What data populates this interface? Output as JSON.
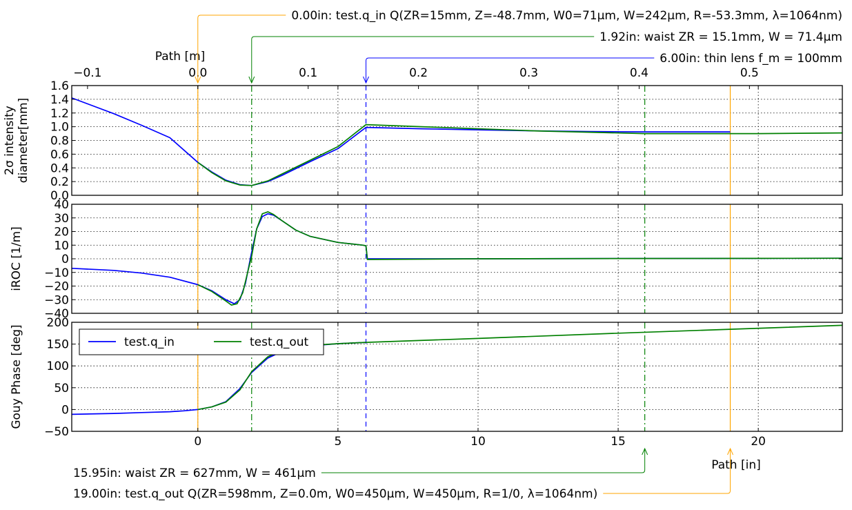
{
  "chart_data": {
    "type": "line",
    "x_unit": "in",
    "series": [
      {
        "name": "test.q_in",
        "color": "#0000ff"
      },
      {
        "name": "test.q_out",
        "color": "#008000"
      }
    ],
    "legend": {
      "placement": "top-left of bottom panel",
      "entries": [
        "test.q_in",
        "test.q_out"
      ]
    },
    "x_axis_bottom": {
      "label": "Path [in]",
      "range": [
        -4.5,
        23
      ],
      "ticks": [
        "0",
        "5",
        "10",
        "15",
        "20"
      ],
      "tick_values": [
        0,
        5,
        10,
        15,
        20
      ]
    },
    "x_axis_top": {
      "label": "Path [m]",
      "range": [
        -0.1143,
        0.5842
      ],
      "ticks": [
        "−0.1",
        "0.0",
        "0.1",
        "0.2",
        "0.3",
        "0.4",
        "0.5"
      ],
      "tick_values": [
        -0.1,
        0.0,
        0.1,
        0.2,
        0.3,
        0.4,
        0.5
      ]
    },
    "panels": [
      {
        "id": "diameter",
        "ylabel_lines": [
          "2σ intensity",
          "diameter[mm]"
        ],
        "ylim": [
          0,
          1.6
        ],
        "yticks": [
          "0.0",
          "0.2",
          "0.4",
          "0.6",
          "0.8",
          "1.0",
          "1.2",
          "1.4",
          "1.6"
        ],
        "ytick_values": [
          0,
          0.2,
          0.4,
          0.6,
          0.8,
          1.0,
          1.2,
          1.4,
          1.6
        ],
        "grid": true,
        "data": {
          "test.q_in": {
            "x": [
              -4.5,
              -3.0,
              -2.0,
              -1.0,
              0.0,
              0.5,
              1.0,
              1.5,
              1.92,
              2.5,
              3.0,
              4.0,
              5.0,
              6.0,
              8.0,
              10.0,
              12.0,
              14.0,
              16.0,
              18.0,
              19.0
            ],
            "y": [
              1.42,
              1.19,
              1.02,
              0.84,
              0.48,
              0.34,
              0.22,
              0.155,
              0.143,
              0.2,
              0.29,
              0.49,
              0.68,
              0.99,
              0.97,
              0.955,
              0.94,
              0.93,
              0.925,
              0.925,
              0.925
            ]
          },
          "test.q_out": {
            "x": [
              0.0,
              0.5,
              1.0,
              1.5,
              1.92,
              2.5,
              3.0,
              4.0,
              5.0,
              6.0,
              8.0,
              10.0,
              12.0,
              14.0,
              15.95,
              18.0,
              20.0,
              23.0
            ],
            "y": [
              0.48,
              0.33,
              0.21,
              0.15,
              0.143,
              0.21,
              0.31,
              0.51,
              0.71,
              1.03,
              1.0,
              0.97,
              0.94,
              0.92,
              0.9,
              0.9,
              0.9,
              0.91
            ]
          }
        }
      },
      {
        "id": "iroc",
        "ylabel_lines": [
          "iROC [1/m]"
        ],
        "ylim": [
          -40,
          40
        ],
        "yticks": [
          "−40",
          "−30",
          "−20",
          "−10",
          "0",
          "10",
          "20",
          "30",
          "40"
        ],
        "ytick_values": [
          -40,
          -30,
          -20,
          -10,
          0,
          10,
          20,
          30,
          40
        ],
        "grid": true,
        "data": {
          "test.q_in": {
            "x": [
              -4.5,
              -3.0,
              -2.0,
              -1.0,
              0.0,
              0.5,
              1.0,
              1.3,
              1.5,
              1.7,
              1.9,
              2.1,
              2.3,
              2.5,
              2.7,
              3.0,
              3.5,
              4.0,
              5.0,
              5.9,
              6.0,
              6.05,
              10.0,
              15.0,
              20.0,
              23.0
            ],
            "y": [
              -7,
              -8.5,
              -10.5,
              -13.5,
              -19,
              -23.5,
              -30,
              -33,
              -30,
              -18,
              3,
              22,
              31,
              33,
              32,
              28,
              21,
              16.5,
              12,
              10,
              9.5,
              0,
              0,
              0.2,
              0.3,
              0.4
            ]
          },
          "test.q_out": {
            "x": [
              0.0,
              0.5,
              1.0,
              1.2,
              1.4,
              1.6,
              1.8,
              1.92,
              2.1,
              2.3,
              2.5,
              2.7,
              3.0,
              3.5,
              4.0,
              5.0,
              5.9,
              6.0,
              6.05,
              10.0,
              15.0,
              20.0,
              23.0
            ],
            "y": [
              -19,
              -24,
              -31,
              -34,
              -33,
              -25,
              -8,
              2,
              22,
              33,
              34.5,
              32.5,
              28,
              21,
              16.5,
              12,
              10,
              9.5,
              -0.5,
              0,
              0.2,
              0.3,
              0.4
            ]
          }
        }
      },
      {
        "id": "gouy",
        "ylabel_lines": [
          "Gouy Phase [deg]"
        ],
        "ylim": [
          -50,
          200
        ],
        "yticks": [
          "−50",
          "0",
          "50",
          "100",
          "150",
          "200"
        ],
        "ytick_values": [
          -50,
          0,
          50,
          100,
          150,
          200
        ],
        "grid": true,
        "data": {
          "test.q_in": {
            "x": [
              -4.5,
              -3.0,
              -2.0,
              -1.0,
              -0.5,
              0.0,
              0.5,
              1.0,
              1.5,
              1.92,
              2.5,
              3.0,
              4.0,
              5.0,
              6.0
            ],
            "y": [
              -11,
              -9,
              -7,
              -5,
              -3,
              0,
              6,
              18,
              48,
              85,
              118,
              133,
              146,
              151,
              154
            ]
          },
          "test.q_out": {
            "x": [
              0.0,
              0.5,
              1.0,
              1.5,
              1.92,
              2.5,
              3.0,
              4.0,
              5.0,
              6.0,
              10.0,
              15.0,
              19.0,
              23.0
            ],
            "y": [
              0,
              6,
              17,
              45,
              87,
              121,
              135,
              147,
              151,
              154,
              163,
              175,
              184,
              193
            ]
          }
        }
      }
    ],
    "markers": [
      {
        "x": 0.0,
        "color": "#ffa500",
        "style": "solid",
        "label": "0.00in: test.q_in Q(ZR=15mm, Z=-48.7mm, W0=71μm, W=242μm, R=-53.3mm, λ=1064nm)",
        "side": "top"
      },
      {
        "x": 1.92,
        "color": "#008000",
        "style": "dashdot",
        "label": "1.92in: waist ZR = 15.1mm, W = 71.4μm",
        "side": "top"
      },
      {
        "x": 6.0,
        "color": "#0000ff",
        "style": "dashed",
        "label": "6.00in: thin lens f_m = 100mm",
        "side": "top"
      },
      {
        "x": 15.95,
        "color": "#008000",
        "style": "dashdot",
        "label": "15.95in: waist ZR = 627mm, W = 461μm",
        "side": "bottom"
      },
      {
        "x": 19.0,
        "color": "#ffa500",
        "style": "solid",
        "label": "19.00in: test.q_out Q(ZR=598mm, Z=0.0m, W0=450μm, W=450μm, R=1/0, λ=1064nm)",
        "side": "bottom"
      }
    ]
  }
}
